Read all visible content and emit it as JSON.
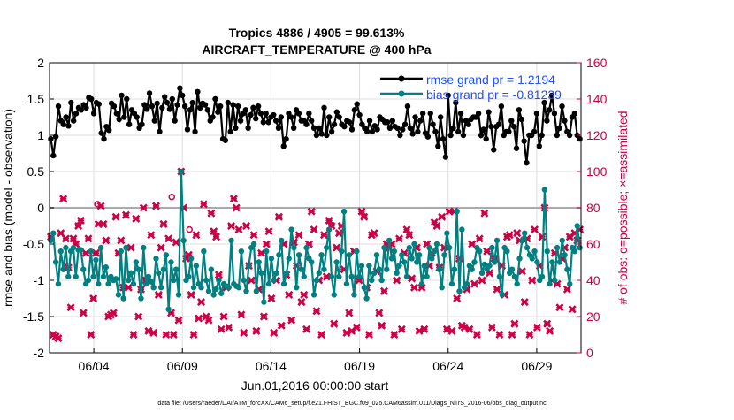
{
  "chart_data": {
    "type": "line",
    "title": "Tropics 4886 / 4905 = 99.613%",
    "subtitle": "AIRCRAFT_TEMPERATURE @ 400 hPa",
    "xlabel": "Jun.01,2016 00:00:00 start",
    "ylabel_left": "rmse and bias (model - observation)",
    "ylabel_right": "# of obs: o=possible; ×=assimilated",
    "footer": "data file: /Users/raeder/DAI/ATM_forcXX/CAM6_setup/f.e21.FHIST_BGC.f09_025.CAM6assim.011/Diags_NTrS_2016-06/obs_diag_output.nc",
    "x_range_days": [
      1.5,
      31.5
    ],
    "ylim_left": [
      -2,
      2
    ],
    "ylim_right": [
      0,
      160
    ],
    "xticks": [
      {
        "day": 4,
        "label": "06/04"
      },
      {
        "day": 9,
        "label": "06/09"
      },
      {
        "day": 14,
        "label": "06/14"
      },
      {
        "day": 19,
        "label": "06/19"
      },
      {
        "day": 24,
        "label": "06/24"
      },
      {
        "day": 29,
        "label": "06/29"
      }
    ],
    "yticks_left": [
      "-2",
      "-1.5",
      "-1",
      "-0.5",
      "0",
      "0.5",
      "1",
      "1.5",
      "2"
    ],
    "yticks_right": [
      "0",
      "20",
      "40",
      "60",
      "80",
      "100",
      "120",
      "140",
      "160"
    ],
    "zero_line": 0,
    "legend": {
      "position": "top-right",
      "entries": [
        "rmse grand pr = 1.2194",
        "bias grand pr = -0.81239"
      ]
    },
    "colors": {
      "rmse": "#000000",
      "bias": "#008080",
      "obs": "#cc0044",
      "legend_text": "#1f4fff",
      "axis": "#000000",
      "grid": "#dddddd",
      "zero": "#aaaaaa"
    },
    "series": [
      {
        "name": "rmse",
        "axis": "left",
        "values": [
          0.95,
          0.72,
          0.98,
          1.4,
          1.2,
          1.15,
          1.25,
          1.13,
          1.45,
          1.2,
          1.3,
          1.38,
          1.35,
          1.42,
          1.38,
          1.52,
          1.5,
          1.3,
          1.45,
          1.43,
          1.03,
          0.95,
          1.12,
          1.07,
          1.44,
          1.4,
          1.3,
          1.22,
          1.55,
          1.25,
          1.5,
          1.15,
          1.35,
          1.3,
          1.25,
          1.1,
          1.15,
          1.42,
          1.36,
          1.58,
          1.4,
          1.2,
          1.44,
          1.05,
          1.38,
          1.53,
          1.45,
          1.36,
          1.5,
          1.2,
          1.42,
          1.65,
          1.55,
          1.4,
          1.08,
          1.35,
          1.45,
          1.05,
          1.6,
          1.38,
          1.44,
          1.42,
          1.35,
          1.2,
          1.25,
          1.5,
          1.32,
          1.4,
          0.95,
          0.93,
          1.45,
          1.05,
          1.42,
          1.1,
          1.4,
          1.2,
          1.3,
          1.35,
          1.1,
          1.28,
          1.38,
          1.23,
          1.4,
          1.3,
          1.18,
          1.3,
          1.18,
          1.25,
          1.28,
          1.2,
          1.1,
          1.25,
          0.85,
          0.95,
          1.3,
          1.25,
          1.1,
          1.35,
          1.3,
          1.2,
          1.2,
          1.15,
          1.3,
          1.2,
          1.1,
          1.0,
          1.1,
          1.02,
          1.38,
          1.0,
          1.25,
          1.05,
          1.15,
          1.32,
          1.25,
          1.15,
          1.12,
          1.2,
          1.18,
          1.08,
          1.35,
          1.43,
          1.28,
          1.15,
          1.1,
          1.05,
          1.2,
          1.05,
          1.13,
          1.08,
          1.25,
          1.22,
          1.18,
          1.18,
          1.1,
          1.2,
          1.12,
          1.1,
          1.0,
          1.08,
          1.15,
          1.4,
          1.1,
          1.02,
          1.25,
          1.05,
          1.2,
          1.3,
          1.03,
          0.98,
          1.3,
          1.15,
          1.05,
          0.85,
          1.25,
          0.95,
          0.7,
          1.55,
          1.0,
          1.1,
          1.45,
          1.05,
          1.3,
          1.0,
          1.2,
          1.15,
          1.22,
          1.25,
          1.25,
          1.3,
          1.0,
          1.08,
          0.95,
          1.32,
          1.12,
          0.8,
          1.12,
          1.15,
          1.4,
          1.0,
          1.05,
          1.05,
          1.2,
          1.12,
          0.82,
          1.35,
          1.22,
          0.92,
          0.62,
          1.0,
          1.0,
          1.05,
          1.3,
          0.85,
          1.0,
          1.45,
          1.2,
          1.35,
          1.55,
          1.3,
          1.0,
          1.1,
          1.4,
          1.2,
          1.05,
          1.0,
          1.25,
          1.3,
          1.0,
          0.95
        ]
      },
      {
        "name": "bias",
        "axis": "left",
        "values": [
          -0.45,
          -0.35,
          -0.75,
          -1.05,
          -0.6,
          -0.85,
          -0.55,
          -0.95,
          -0.6,
          -0.55,
          -0.95,
          -0.58,
          -0.58,
          -0.85,
          -1.05,
          -1.0,
          -0.6,
          -0.95,
          -0.72,
          -1.05,
          -0.55,
          -0.95,
          -0.82,
          -1.05,
          -0.95,
          -1.0,
          -0.98,
          -1.2,
          -0.6,
          -1.25,
          -0.55,
          -1.0,
          -0.9,
          -1.05,
          -0.75,
          -0.85,
          -1.25,
          -0.55,
          -1.05,
          -0.95,
          -1.02,
          -1.1,
          -0.7,
          -0.9,
          -1.1,
          -0.85,
          -0.65,
          -1.4,
          -0.75,
          -1.0,
          -0.85,
          -1.2,
          0.5,
          -0.45,
          -1.0,
          -0.95,
          -0.7,
          -1.1,
          -0.8,
          -1.05,
          -1.1,
          -0.6,
          -1.0,
          -1.15,
          -0.85,
          -1.2,
          -1.12,
          -1.0,
          -1.18,
          -1.05,
          -1.08,
          -1.1,
          -0.45,
          -1.05,
          -1.08,
          -1.1,
          -0.6,
          -1.0,
          -1.15,
          -0.8,
          -0.55,
          -0.5,
          -1.15,
          -0.75,
          -0.9,
          -1.3,
          -0.6,
          -1.05,
          -0.7,
          -1.0,
          -0.9,
          -0.65,
          -0.45,
          -1.05,
          -0.9,
          -0.7,
          -0.3,
          -0.55,
          -1.1,
          -0.65,
          -0.85,
          -0.95,
          -0.55,
          -0.7,
          -0.75,
          -1.2,
          -1.0,
          -0.9,
          -0.65,
          -0.85,
          -0.55,
          -0.3,
          -0.95,
          -1.2,
          -0.75,
          -0.95,
          -0.6,
          -0.05,
          -1.05,
          -0.65,
          -0.95,
          -1.2,
          -0.6,
          -0.95,
          -0.8,
          -1.1,
          -1.25,
          -0.8,
          -1.0,
          -0.9,
          -0.65,
          -0.85,
          -1.0,
          -0.55,
          -0.85,
          -0.45,
          -0.7,
          -0.6,
          -0.9,
          -0.8,
          -0.65,
          -0.75,
          -0.95,
          -0.55,
          -0.7,
          -0.5,
          -0.75,
          -0.65,
          -1.05,
          -0.8,
          -0.95,
          -0.55,
          -0.7,
          -0.6,
          -0.5,
          -0.85,
          -1.1,
          -0.65,
          -0.35,
          -0.55,
          -1.05,
          -0.85,
          -0.05,
          -1.15,
          -0.3,
          -1.1,
          -1.05,
          -0.8,
          -0.85,
          -0.75,
          -0.55,
          -0.6,
          -0.9,
          -0.78,
          -0.85,
          -0.8,
          -0.55,
          -0.75,
          -0.45,
          -0.95,
          -1.2,
          -0.55,
          -0.6,
          -0.9,
          -0.85,
          -0.95,
          -1.05,
          -0.7,
          -0.45,
          -0.35,
          -0.55,
          -0.65,
          -0.7,
          -0.6,
          -0.75,
          -1.0,
          -0.95,
          0.25,
          -0.6,
          -1.05,
          -0.75,
          -1.0,
          -0.55,
          -0.75,
          -0.45,
          -0.65,
          -0.85,
          -1.05,
          -0.55,
          -0.6,
          -0.25,
          -0.55
        ]
      },
      {
        "name": "obs",
        "axis": "right",
        "values": [
          64,
          10,
          9,
          8,
          66,
          85,
          63,
          47,
          25,
          63,
          60,
          70,
          73,
          22,
          55,
          63,
          10,
          30,
          55,
          71,
          81,
          71,
          62,
          20,
          21,
          22,
          75,
          55,
          62,
          36,
          76,
          36,
          58,
          10,
          74,
          20,
          35,
          80,
          40,
          12,
          65,
          11,
          81,
          32,
          58,
          71,
          10,
          63,
          22,
          10,
          61,
          18,
          100,
          80,
          52,
          54,
          32,
          10,
          65,
          19,
          28,
          82,
          20,
          18,
          77,
          67,
          64,
          43,
          13,
          20,
          36,
          14,
          70,
          85,
          80,
          68,
          21,
          11,
          70,
          48,
          40,
          65,
          12,
          35,
          55,
          20,
          60,
          67,
          30,
          11,
          40,
          75,
          15,
          60,
          43,
          32,
          18,
          61,
          48,
          65,
          28,
          32,
          13,
          60,
          78,
          68,
          23,
          40,
          10,
          65,
          42,
          73,
          70,
          16,
          58,
          66,
          70,
          46,
          11,
          22,
          12,
          56,
          14,
          40,
          78,
          75,
          36,
          10,
          65,
          66,
          45,
          22,
          15,
          34,
          60,
          58,
          60,
          10,
          40,
          63,
          13,
          55,
          68,
          65,
          41,
          36,
          58,
          12,
          36,
          13,
          60,
          48,
          55,
          72,
          70,
          47,
          75,
          58,
          13,
          78,
          12,
          78,
          30,
          52,
          15,
          14,
          35,
          13,
          60,
          38,
          10,
          63,
          40,
          77,
          56,
          44,
          14,
          52,
          35,
          10,
          48,
          32,
          64,
          65,
          10,
          16,
          66,
          62,
          45,
          28,
          63,
          10,
          40,
          68,
          14,
          48,
          64,
          80,
          16,
          12,
          40,
          55,
          38,
          25,
          52,
          58,
          35,
          64,
          24,
          66,
          62,
          68
        ]
      },
      {
        "name": "possible",
        "axis": "right",
        "markers": [
          {
            "day": 4.2,
            "value": 82
          },
          {
            "day": 8.4,
            "value": 86
          },
          {
            "day": 9.4,
            "value": 68
          }
        ]
      }
    ]
  }
}
